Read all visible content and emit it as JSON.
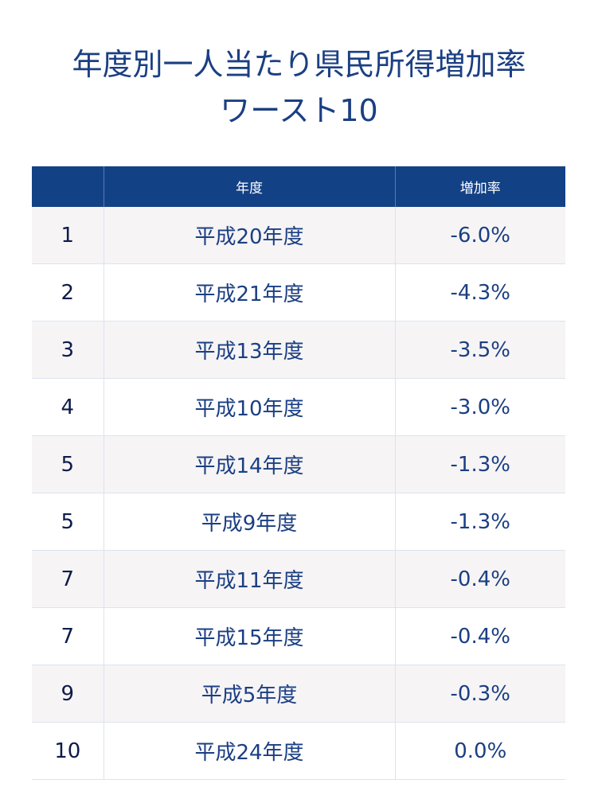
{
  "title_line1": "年度別一人当たり県民所得増加率",
  "title_line2": "ワースト10",
  "chart_data": {
    "type": "table",
    "title": "年度別一人当たり県民所得増加率 ワースト10",
    "columns": [
      "",
      "年度",
      "増加率"
    ],
    "rows": [
      {
        "rank": "1",
        "year": "平成20年度",
        "rate": "-6.0%"
      },
      {
        "rank": "2",
        "year": "平成21年度",
        "rate": "-4.3%"
      },
      {
        "rank": "3",
        "year": "平成13年度",
        "rate": "-3.5%"
      },
      {
        "rank": "4",
        "year": "平成10年度",
        "rate": "-3.0%"
      },
      {
        "rank": "5",
        "year": "平成14年度",
        "rate": "-1.3%"
      },
      {
        "rank": "5",
        "year": "平成9年度",
        "rate": "-1.3%"
      },
      {
        "rank": "7",
        "year": "平成11年度",
        "rate": "-0.4%"
      },
      {
        "rank": "7",
        "year": "平成15年度",
        "rate": "-0.4%"
      },
      {
        "rank": "9",
        "year": "平成5年度",
        "rate": "-0.3%"
      },
      {
        "rank": "10",
        "year": "平成24年度",
        "rate": "0.0%"
      }
    ]
  }
}
